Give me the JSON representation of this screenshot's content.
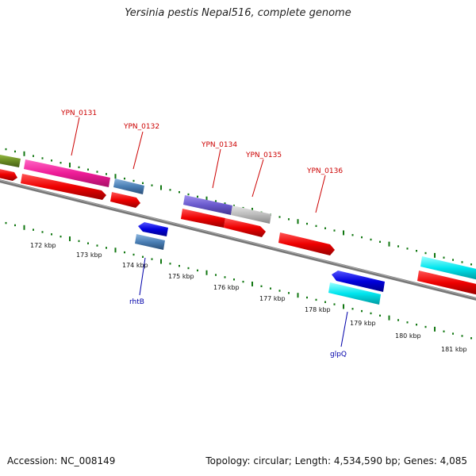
{
  "title": "Yersinia pestis Nepal516, complete genome",
  "footer": {
    "accession": "Accession: NC_008149",
    "summary": "Topology: circular; Length: 4,534,590 bp; Genes: 4,085"
  },
  "kbp_labels": [
    "172 kbp",
    "173 kbp",
    "174 kbp",
    "175 kbp",
    "176 kbp",
    "177 kbp",
    "178 kbp",
    "179 kbp",
    "180 kbp",
    "181 kbp"
  ],
  "gene_labels": [
    {
      "text": "YPN_0131",
      "color": "#cc0000"
    },
    {
      "text": "YPN_0132",
      "color": "#cc0000"
    },
    {
      "text": "YPN_0134",
      "color": "#cc0000"
    },
    {
      "text": "YPN_0135",
      "color": "#cc0000"
    },
    {
      "text": "YPN_0136",
      "color": "#cc0000"
    },
    {
      "text": "rhtB",
      "color": "#0000aa"
    },
    {
      "text": "glpQ",
      "color": "#0000aa"
    }
  ],
  "feature_colors": {
    "olive": "#6b8e23",
    "magenta": "#ee1c97",
    "red": "#ee0000",
    "steel": "#4a7fb5",
    "blue": "#0000dd",
    "violet": "#6a5acd",
    "gray": "#bbbbbb",
    "cyan": "#00e5ee",
    "backbone": "#777777",
    "tick": "#117711"
  }
}
